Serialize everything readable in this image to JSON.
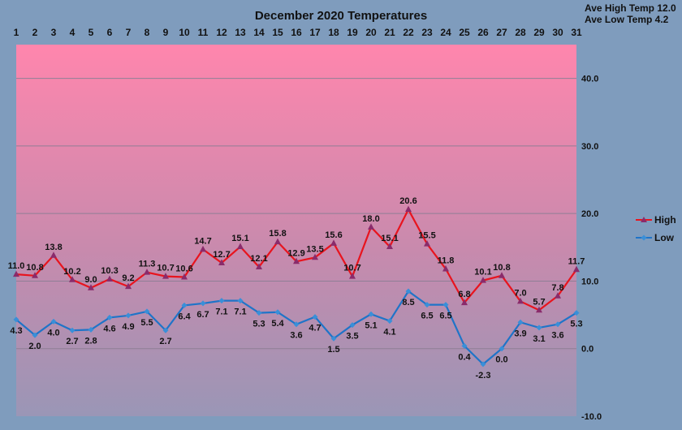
{
  "chart_data": {
    "type": "line",
    "title": "December 2020 Temperatures",
    "annotations": [
      "Ave High Temp 12.0",
      "Ave Low Temp 4.2"
    ],
    "x": [
      "1",
      "2",
      "3",
      "4",
      "5",
      "6",
      "7",
      "8",
      "9",
      "10",
      "11",
      "12",
      "13",
      "14",
      "15",
      "16",
      "17",
      "18",
      "19",
      "20",
      "21",
      "22",
      "23",
      "24",
      "25",
      "26",
      "27",
      "28",
      "29",
      "30",
      "31"
    ],
    "ylim": [
      -10,
      45
    ],
    "yticks": [
      -10,
      0,
      10,
      20,
      30,
      40
    ],
    "ytick_labels": [
      "-10.0",
      "0.0",
      "10.0",
      "20.0",
      "30.0",
      "40.0"
    ],
    "grid": true,
    "legend_position": "right",
    "series": [
      {
        "name": "High",
        "color": "#e8141e",
        "marker_color": "#8a2b6b",
        "values": [
          11.0,
          10.8,
          13.8,
          10.2,
          9.0,
          10.3,
          9.2,
          11.3,
          10.7,
          10.6,
          14.7,
          12.7,
          15.1,
          12.1,
          15.8,
          12.9,
          13.5,
          15.6,
          10.7,
          18.0,
          15.1,
          20.6,
          15.5,
          11.8,
          6.8,
          10.1,
          10.8,
          7.0,
          5.7,
          7.8,
          11.7
        ],
        "labels": [
          "11.0",
          "10.8",
          "13.8",
          "10.2",
          "9.0",
          "10.3",
          "9.2",
          "11.3",
          "10.7",
          "10.6",
          "14.7",
          "12.7",
          "15.1",
          "12.1",
          "15.8",
          "12.9",
          "13.5",
          "15.6",
          "10.7",
          "18.0",
          "15.1",
          "20.6",
          "15.5",
          "11.8",
          "6.8",
          "10.1",
          "10.8",
          "7.0",
          "5.7",
          "7.8",
          "11.7"
        ]
      },
      {
        "name": "Low",
        "color": "#1f74c8",
        "marker_color": "#3a8fd8",
        "values": [
          4.3,
          2.0,
          4.0,
          2.7,
          2.8,
          4.6,
          4.9,
          5.5,
          2.7,
          6.4,
          6.7,
          7.1,
          7.1,
          5.3,
          5.4,
          3.6,
          4.7,
          1.5,
          3.5,
          5.1,
          4.1,
          8.5,
          6.5,
          6.5,
          0.4,
          -2.3,
          0.0,
          3.9,
          3.1,
          3.6,
          5.3
        ],
        "labels": [
          "4.3",
          "2.0",
          "4.0",
          "2.7",
          "2.8",
          "4.6",
          "4.9",
          "5.5",
          "2.7",
          "6.4",
          "6.7",
          "7.1",
          "7.1",
          "5.3",
          "5.4",
          "3.6",
          "4.7",
          "1.5",
          "3.5",
          "5.1",
          "4.1",
          "8.5",
          "6.5",
          "6.5",
          "0.4",
          "-2.3",
          "0.0",
          "3.9",
          "3.1",
          "3.6",
          "5.3"
        ]
      }
    ]
  }
}
